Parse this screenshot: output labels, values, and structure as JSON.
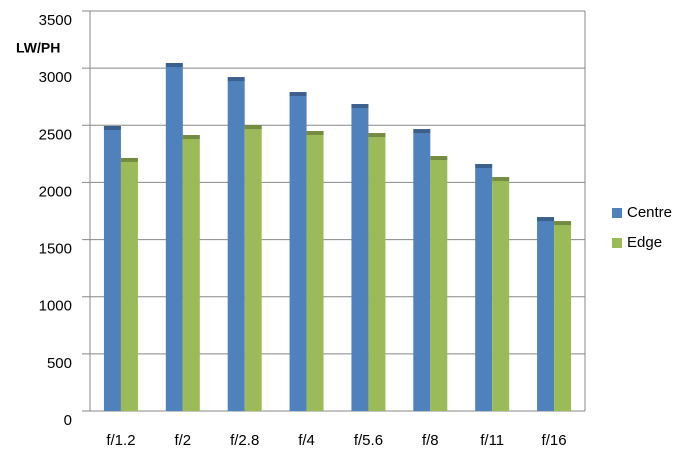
{
  "chart_data": {
    "type": "bar",
    "y_label": "LW/PH",
    "categories": [
      "f/1.2",
      "f/2",
      "f/2.8",
      "f/4",
      "f/5.6",
      "f/8",
      "f/11",
      "f/16"
    ],
    "series": [
      {
        "name": "Centre",
        "color": "#4f81bd",
        "values": [
          2494,
          3045,
          2922,
          2791,
          2686,
          2467,
          2161,
          1697
        ]
      },
      {
        "name": "Edge",
        "color": "#9bbb59",
        "values": [
          2214,
          2415,
          2502,
          2450,
          2432,
          2231,
          2047,
          1662
        ]
      }
    ],
    "ylim": [
      0,
      3500
    ],
    "yticks": [
      0,
      500,
      1000,
      1500,
      2000,
      2500,
      3000,
      3500
    ],
    "grid": true,
    "legend": "right"
  }
}
